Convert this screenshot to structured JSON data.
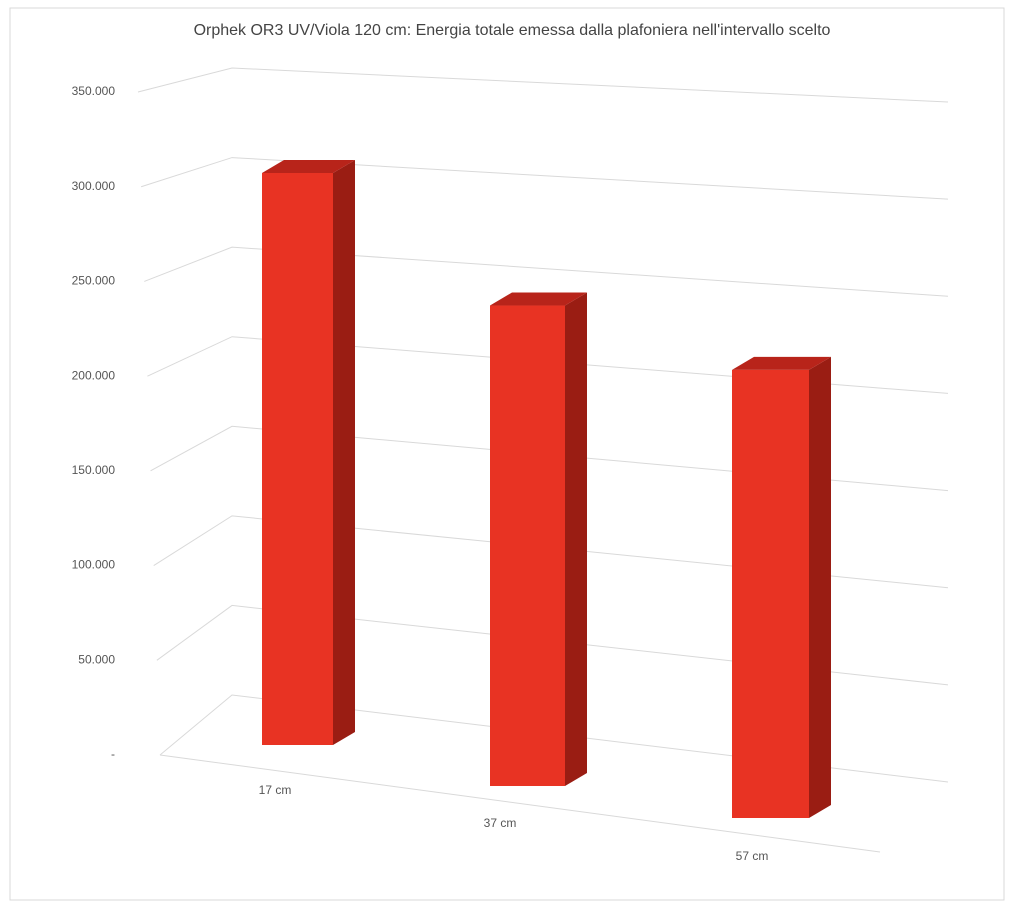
{
  "chart_data": {
    "type": "bar3d",
    "title": "Orphek OR3 UV/Viola 120 cm: Energia totale emessa dalla plafoniera nell'intervallo scelto",
    "categories": [
      "17 cm",
      "37 cm",
      "57 cm"
    ],
    "values": [
      300000,
      252000,
      235000
    ],
    "color": "#e83323",
    "ylim": [
      0,
      350000
    ],
    "yticks": [
      {
        "value": 0,
        "label": "-"
      },
      {
        "value": 50000,
        "label": "50.000"
      },
      {
        "value": 100000,
        "label": "100.000"
      },
      {
        "value": 150000,
        "label": "150.000"
      },
      {
        "value": 200000,
        "label": "200.000"
      },
      {
        "value": 250000,
        "label": "250.000"
      },
      {
        "value": 300000,
        "label": "300.000"
      },
      {
        "value": 350000,
        "label": "350.000"
      }
    ],
    "grid": true
  }
}
